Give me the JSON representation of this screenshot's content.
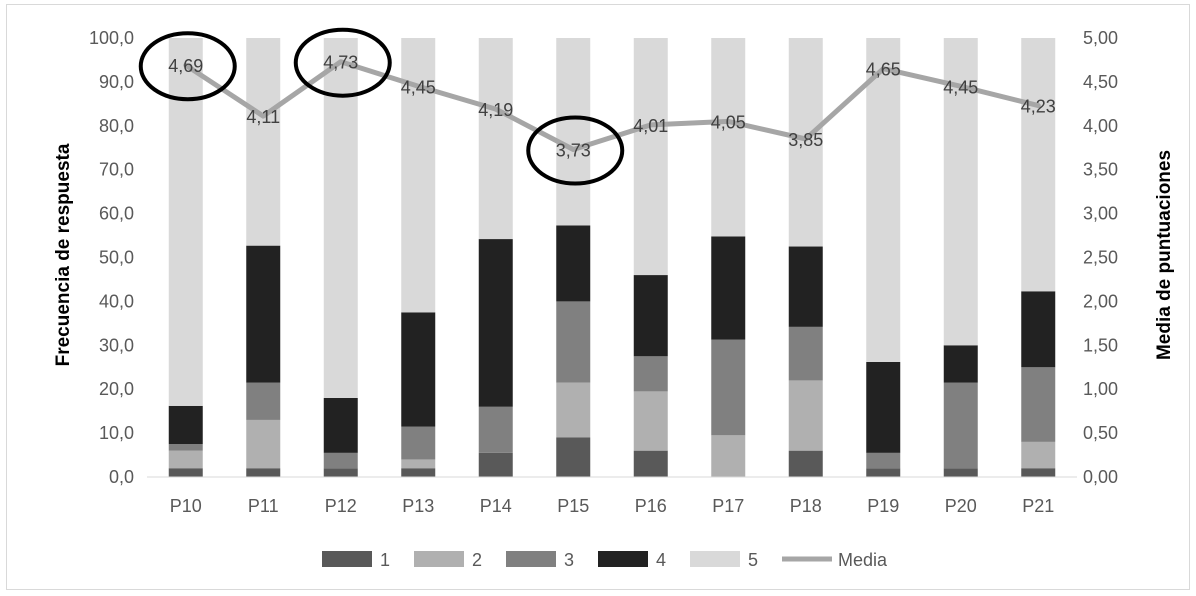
{
  "chart_data": {
    "type": "bar",
    "stacked": true,
    "categories": [
      "P10",
      "P11",
      "P12",
      "P13",
      "P14",
      "P15",
      "P16",
      "P17",
      "P18",
      "P19",
      "P20",
      "P21"
    ],
    "series": [
      {
        "name": "1",
        "color": "#595959",
        "values": [
          2,
          2,
          2,
          2,
          5.5,
          9,
          6,
          0,
          6,
          2,
          2,
          2
        ]
      },
      {
        "name": "2",
        "color": "#b0b0b0",
        "values": [
          4,
          11,
          0,
          2,
          0,
          12.5,
          13.5,
          9.5,
          16,
          0,
          0,
          6
        ]
      },
      {
        "name": "3",
        "color": "#808080",
        "values": [
          1.5,
          8.5,
          3.5,
          7.5,
          10.5,
          18.5,
          8,
          21.8,
          12.2,
          3.5,
          19.5,
          17
        ]
      },
      {
        "name": "4",
        "color": "#222222",
        "values": [
          8.7,
          31.2,
          12.5,
          26,
          38.2,
          17.3,
          18.5,
          23.5,
          18.3,
          20.7,
          8.5,
          17.3
        ]
      },
      {
        "name": "5",
        "color": "#d9d9d9",
        "values": [
          83.8,
          47.3,
          82,
          62.5,
          45.8,
          42.7,
          54,
          45.2,
          47.5,
          73.8,
          70,
          57.7
        ]
      }
    ],
    "line_series": {
      "name": "Media",
      "color": "#a6a6a6",
      "axis": "right",
      "values": [
        4.69,
        4.11,
        4.73,
        4.45,
        4.19,
        3.73,
        4.01,
        4.05,
        3.85,
        4.65,
        4.45,
        4.23
      ],
      "labels": [
        "4,69",
        "4,11",
        "4,73",
        "4,45",
        "4,19",
        "3,73",
        "4,01",
        "4,05",
        "3,85",
        "4,65",
        "4,45",
        "4,23"
      ]
    },
    "highlighted_categories": [
      "P10",
      "P12",
      "P15"
    ],
    "ylabel": "Frecuencia de respuesta",
    "y2label": "Media de puntuaciones",
    "ylim": [
      0,
      100
    ],
    "y2lim": [
      0,
      5
    ],
    "yticks": [
      "0,0",
      "10,0",
      "20,0",
      "30,0",
      "40,0",
      "50,0",
      "60,0",
      "70,0",
      "80,0",
      "90,0",
      "100,0"
    ],
    "y2ticks": [
      "0,00",
      "0,50",
      "1,00",
      "1,50",
      "2,00",
      "2,50",
      "3,00",
      "3,50",
      "4,00",
      "4,50",
      "5,00"
    ],
    "grid": false,
    "legend_position": "bottom",
    "legend": [
      "1",
      "2",
      "3",
      "4",
      "5",
      "Media"
    ]
  }
}
